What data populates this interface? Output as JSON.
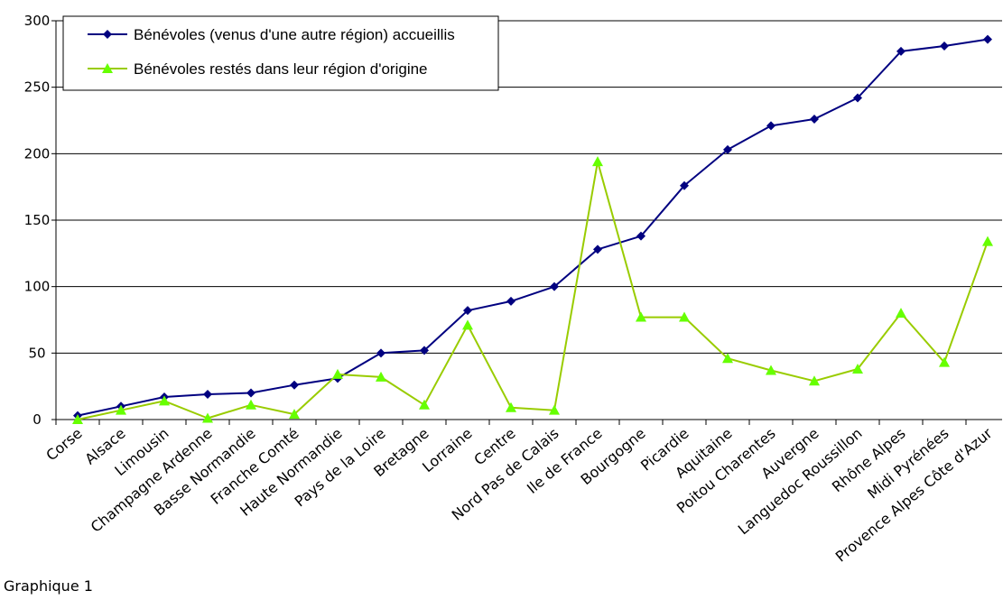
{
  "chart_data": {
    "type": "line",
    "categories": [
      "Corse",
      "Alsace",
      "Limousin",
      "Champagne Ardenne",
      "Basse Normandie",
      "Franche Comté",
      "Haute Normandie",
      "Pays de la Loire",
      "Bretagne",
      "Lorraine",
      "Centre",
      "Nord Pas de Calais",
      "Ile de France",
      "Bourgogne",
      "Picardie",
      "Aquitaine",
      "Poitou Charentes",
      "Auvergne",
      "Languedoc Roussillon",
      "Rhône Alpes",
      "Midi Pyrénées",
      "Provence Alpes Côte d'Azur"
    ],
    "series": [
      {
        "name": "Bénévoles (venus d'une autre région) accueillis",
        "values": [
          3,
          10,
          17,
          19,
          20,
          26,
          31,
          50,
          52,
          82,
          89,
          100,
          128,
          138,
          176,
          203,
          221,
          226,
          242,
          277,
          281,
          286
        ],
        "color": "#000080",
        "marker_color": "#000080",
        "marker": "diamond"
      },
      {
        "name": "Bénévoles restés dans leur région d'origine",
        "values": [
          0,
          7,
          14,
          1,
          11,
          4,
          34,
          32,
          11,
          71,
          9,
          7,
          194,
          77,
          77,
          46,
          37,
          29,
          38,
          80,
          43,
          134
        ],
        "color": "#99cc00",
        "marker_color": "#66ff00",
        "marker": "triangle"
      }
    ],
    "ylim": [
      0,
      300
    ],
    "yticks": [
      0,
      50,
      100,
      150,
      200,
      250,
      300
    ],
    "grid": true,
    "legend": "top-left"
  },
  "caption": "Graphique 1"
}
